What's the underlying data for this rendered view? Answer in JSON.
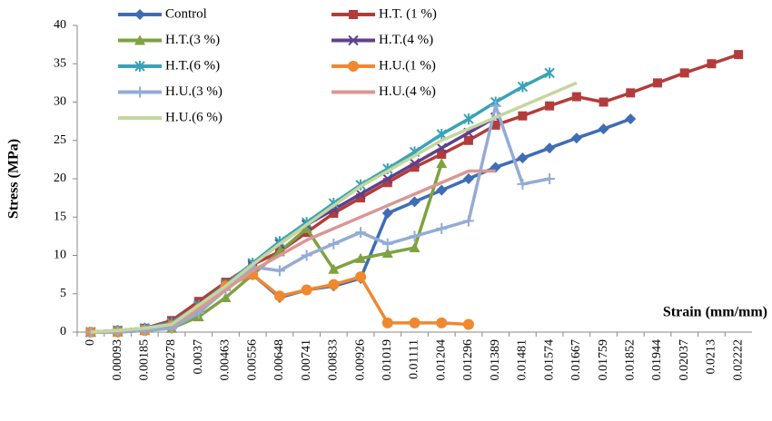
{
  "chart_data": {
    "type": "line",
    "y_label": "Stress (MPa)",
    "x_label": "Strain (mm/mm)",
    "categories": [
      "0",
      "0.00093",
      "0.00185",
      "0.00278",
      "0.0037",
      "0.00463",
      "0.00556",
      "0.00648",
      "0.00741",
      "0.00833",
      "0.00926",
      "0.01019",
      "0.01111",
      "0.01204",
      "0.01296",
      "0.01389",
      "0.01481",
      "0.01574",
      "0.01667",
      "0.01759",
      "0.01852",
      "0.01944",
      "0.02037",
      "0.0213",
      "0.02222"
    ],
    "ylim": [
      0,
      40
    ],
    "yticks": [
      0,
      5,
      10,
      15,
      20,
      25,
      30,
      35,
      40
    ],
    "grid": false,
    "legend": "top",
    "series": [
      {
        "name": "Control",
        "color": "#3f6db5",
        "marker": "diamond",
        "values": [
          0,
          0,
          0.3,
          1,
          3.5,
          6,
          7.5,
          4.5,
          5.5,
          6,
          7,
          15.5,
          17,
          18.5,
          20,
          21.5,
          22.7,
          24,
          25.3,
          26.5,
          27.8,
          null,
          null,
          null,
          null
        ]
      },
      {
        "name": "H.T. (1 %)",
        "color": "#b33c3a",
        "marker": "square",
        "values": [
          0,
          0.2,
          0.5,
          1.5,
          4,
          6.5,
          8.8,
          10.5,
          13,
          15.5,
          17.5,
          19.5,
          21.5,
          23.2,
          25,
          27,
          28.2,
          29.5,
          30.7,
          30,
          31.2,
          32.5,
          33.8,
          35,
          36.2
        ]
      },
      {
        "name": "H.T.(3 %)",
        "color": "#7ea23f",
        "marker": "triangle",
        "values": [
          0,
          0,
          0.2,
          0.5,
          2,
          4.5,
          7.5,
          10.5,
          13.5,
          8.2,
          9.6,
          10.3,
          11,
          22,
          null,
          null,
          null,
          null,
          null,
          null,
          null,
          null,
          null,
          null,
          null
        ]
      },
      {
        "name": "H.T.(4 %)",
        "color": "#5f418c",
        "marker": "x",
        "values": [
          0,
          0.2,
          0.5,
          1.2,
          3.5,
          6,
          8.8,
          11.5,
          14,
          16,
          18,
          20,
          22,
          24,
          26,
          28,
          null,
          null,
          null,
          null,
          null,
          null,
          null,
          null,
          null
        ]
      },
      {
        "name": "H.T.(6 %)",
        "color": "#3aa2b8",
        "marker": "star",
        "values": [
          0,
          0.2,
          0.5,
          1.2,
          3.5,
          6.2,
          9,
          11.8,
          14.3,
          16.8,
          19.2,
          21.3,
          23.5,
          25.8,
          27.8,
          30,
          32,
          33.8,
          null,
          null,
          null,
          null,
          null,
          null,
          null
        ]
      },
      {
        "name": "H.U.(1 %)",
        "color": "#f0882f",
        "marker": "circle",
        "values": [
          0,
          0,
          0.2,
          0.8,
          3,
          6,
          7.5,
          4.7,
          5.5,
          6.2,
          7.2,
          1.2,
          1.2,
          1.2,
          1,
          null,
          null,
          null,
          null,
          null,
          null,
          null,
          null,
          null,
          null
        ]
      },
      {
        "name": "H.U.(3  %)",
        "color": "#93abd6",
        "marker": "plus",
        "values": [
          0,
          0,
          0.2,
          0.5,
          2.5,
          5.5,
          8.5,
          8,
          10,
          11.5,
          13,
          11.5,
          12.5,
          13.5,
          14.5,
          29.5,
          19.3,
          20,
          null,
          null,
          null,
          null,
          null,
          null,
          null
        ]
      },
      {
        "name": "H.U.(4 %)",
        "color": "#d99795",
        "marker": "none",
        "values": [
          0,
          0.2,
          0.5,
          1,
          3,
          5.5,
          8,
          10,
          12,
          13.5,
          15,
          16.5,
          18,
          19.5,
          21,
          21,
          null,
          null,
          null,
          null,
          null,
          null,
          null,
          null,
          null
        ]
      },
      {
        "name": "H.U.(6 %)",
        "color": "#c4d79d",
        "marker": "none",
        "values": [
          0,
          0.2,
          0.5,
          1,
          3.5,
          6,
          8.8,
          11.5,
          14,
          16.5,
          19,
          21,
          23,
          25,
          26.5,
          28,
          29.5,
          31,
          32.5,
          null,
          null,
          null,
          null,
          null,
          null
        ]
      }
    ]
  }
}
